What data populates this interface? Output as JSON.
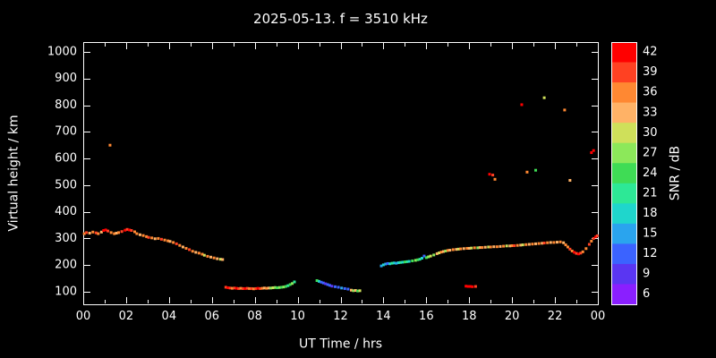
{
  "chart_data": {
    "type": "scatter",
    "title": "2025-05-13. f = 3510 kHz",
    "xlabel": "UT Time / hrs",
    "ylabel": "Virtual height / km",
    "colorbar_label": "SNR / dB",
    "background": "#000000",
    "axis_color": "#ffffff",
    "xlim": [
      0,
      24
    ],
    "ylim": [
      100,
      1000
    ],
    "x_tick_values": [
      0,
      2,
      4,
      6,
      8,
      10,
      12,
      14,
      16,
      18,
      20,
      22,
      24
    ],
    "x_tick_labels": [
      "00",
      "02",
      "04",
      "06",
      "08",
      "10",
      "12",
      "14",
      "16",
      "18",
      "20",
      "22",
      "00"
    ],
    "y_ticks": [
      100,
      200,
      300,
      400,
      500,
      600,
      700,
      800,
      900,
      1000
    ],
    "snr_levels": [
      42,
      39,
      36,
      33,
      30,
      27,
      24,
      21,
      18,
      15,
      12,
      9,
      6
    ],
    "snr_colors": [
      "#ff0000",
      "#ff4122",
      "#ff8832",
      "#ffb266",
      "#cfe05a",
      "#8ce85a",
      "#3fdc55",
      "#2de896",
      "#1fd6cc",
      "#2aa4ee",
      "#3b63ff",
      "#5a36f2",
      "#8a1fff"
    ],
    "points": [
      [
        0.05,
        318,
        36
      ],
      [
        0.15,
        322,
        39
      ],
      [
        0.3,
        320,
        33
      ],
      [
        0.45,
        324,
        36
      ],
      [
        0.6,
        321,
        39
      ],
      [
        0.7,
        318,
        36
      ],
      [
        0.85,
        324,
        33
      ],
      [
        0.95,
        330,
        42
      ],
      [
        1.05,
        332,
        42
      ],
      [
        1.15,
        328,
        39
      ],
      [
        1.25,
        650,
        36
      ],
      [
        1.3,
        322,
        36
      ],
      [
        1.45,
        318,
        36
      ],
      [
        1.55,
        320,
        33
      ],
      [
        1.65,
        322,
        36
      ],
      [
        1.8,
        326,
        39
      ],
      [
        1.95,
        331,
        42
      ],
      [
        2.05,
        334,
        39
      ],
      [
        2.15,
        332,
        42
      ],
      [
        2.25,
        330,
        39
      ],
      [
        2.4,
        325,
        36
      ],
      [
        2.5,
        318,
        36
      ],
      [
        2.65,
        314,
        33
      ],
      [
        2.8,
        311,
        36
      ],
      [
        2.95,
        307,
        36
      ],
      [
        3.05,
        304,
        39
      ],
      [
        3.2,
        302,
        36
      ],
      [
        3.35,
        299,
        33
      ],
      [
        3.5,
        300,
        36
      ],
      [
        3.65,
        297,
        39
      ],
      [
        3.8,
        294,
        36
      ],
      [
        3.95,
        291,
        36
      ],
      [
        4.05,
        289,
        33
      ],
      [
        4.2,
        285,
        36
      ],
      [
        4.35,
        280,
        39
      ],
      [
        4.5,
        274,
        36
      ],
      [
        4.65,
        268,
        33
      ],
      [
        4.8,
        263,
        36
      ],
      [
        4.95,
        258,
        39
      ],
      [
        5.1,
        252,
        36
      ],
      [
        5.25,
        248,
        33
      ],
      [
        5.4,
        245,
        36
      ],
      [
        5.55,
        241,
        36
      ],
      [
        5.65,
        237,
        30
      ],
      [
        5.8,
        233,
        36
      ],
      [
        5.95,
        230,
        33
      ],
      [
        6.1,
        227,
        36
      ],
      [
        6.25,
        224,
        33
      ],
      [
        6.4,
        222,
        30
      ],
      [
        6.5,
        221,
        33
      ],
      [
        6.65,
        117,
        39
      ],
      [
        6.75,
        115,
        42
      ],
      [
        6.85,
        114,
        39
      ],
      [
        6.95,
        113,
        36
      ],
      [
        7.05,
        114,
        39
      ],
      [
        7.15,
        113,
        42
      ],
      [
        7.25,
        112,
        39
      ],
      [
        7.35,
        113,
        36
      ],
      [
        7.45,
        112,
        39
      ],
      [
        7.55,
        112,
        42
      ],
      [
        7.65,
        113,
        39
      ],
      [
        7.75,
        112,
        36
      ],
      [
        7.85,
        112,
        39
      ],
      [
        7.95,
        111,
        36
      ],
      [
        8.05,
        112,
        39
      ],
      [
        8.15,
        113,
        42
      ],
      [
        8.25,
        112,
        39
      ],
      [
        8.35,
        113,
        36
      ],
      [
        8.45,
        114,
        33
      ],
      [
        8.55,
        113,
        36
      ],
      [
        8.65,
        114,
        33
      ],
      [
        8.75,
        114,
        27
      ],
      [
        8.85,
        115,
        30
      ],
      [
        8.95,
        116,
        27
      ],
      [
        9.05,
        115,
        24
      ],
      [
        9.15,
        116,
        27
      ],
      [
        9.25,
        117,
        24
      ],
      [
        9.35,
        118,
        27
      ],
      [
        9.45,
        120,
        24
      ],
      [
        9.55,
        123,
        21
      ],
      [
        9.65,
        127,
        24
      ],
      [
        9.75,
        131,
        27
      ],
      [
        9.85,
        137,
        21
      ],
      [
        10.9,
        142,
        24
      ],
      [
        11.0,
        139,
        18
      ],
      [
        11.1,
        136,
        12
      ],
      [
        11.2,
        133,
        12
      ],
      [
        11.3,
        130,
        9
      ],
      [
        11.4,
        127,
        12
      ],
      [
        11.5,
        124,
        12
      ],
      [
        11.6,
        121,
        9
      ],
      [
        11.75,
        119,
        12
      ],
      [
        11.9,
        117,
        12
      ],
      [
        12.05,
        114,
        15
      ],
      [
        12.2,
        112,
        12
      ],
      [
        12.35,
        110,
        12
      ],
      [
        12.5,
        106,
        33
      ],
      [
        12.6,
        104,
        27
      ],
      [
        12.7,
        105,
        33
      ],
      [
        12.8,
        103,
        24
      ],
      [
        12.9,
        104,
        30
      ],
      [
        13.9,
        197,
        15
      ],
      [
        14.0,
        201,
        18
      ],
      [
        14.1,
        204,
        15
      ],
      [
        14.2,
        206,
        12
      ],
      [
        14.3,
        205,
        18
      ],
      [
        14.4,
        207,
        21
      ],
      [
        14.5,
        208,
        18
      ],
      [
        14.6,
        207,
        15
      ],
      [
        14.7,
        209,
        18
      ],
      [
        14.8,
        210,
        21
      ],
      [
        14.9,
        211,
        18
      ],
      [
        15.0,
        212,
        24
      ],
      [
        15.1,
        213,
        21
      ],
      [
        15.2,
        214,
        18
      ],
      [
        15.35,
        216,
        24
      ],
      [
        15.5,
        218,
        27
      ],
      [
        15.6,
        220,
        24
      ],
      [
        15.7,
        222,
        21
      ],
      [
        15.8,
        226,
        18
      ],
      [
        15.9,
        234,
        12
      ],
      [
        16.0,
        228,
        24
      ],
      [
        16.1,
        231,
        27
      ],
      [
        16.2,
        234,
        30
      ],
      [
        16.35,
        238,
        27
      ],
      [
        16.5,
        243,
        33
      ],
      [
        16.6,
        246,
        30
      ],
      [
        16.7,
        249,
        36
      ],
      [
        16.8,
        251,
        33
      ],
      [
        16.9,
        253,
        27
      ],
      [
        17.0,
        255,
        36
      ],
      [
        17.1,
        256,
        33
      ],
      [
        17.25,
        258,
        36
      ],
      [
        17.4,
        259,
        33
      ],
      [
        17.5,
        260,
        30
      ],
      [
        17.6,
        261,
        36
      ],
      [
        17.75,
        262,
        33
      ],
      [
        17.9,
        263,
        36
      ],
      [
        18.0,
        263,
        33
      ],
      [
        18.1,
        264,
        30
      ],
      [
        18.25,
        265,
        36
      ],
      [
        18.4,
        265,
        27
      ],
      [
        18.5,
        266,
        33
      ],
      [
        18.6,
        266,
        36
      ],
      [
        18.75,
        267,
        33
      ],
      [
        18.9,
        268,
        30
      ],
      [
        19.0,
        268,
        36
      ],
      [
        19.15,
        269,
        33
      ],
      [
        19.3,
        269,
        36
      ],
      [
        19.45,
        270,
        33
      ],
      [
        19.6,
        271,
        36
      ],
      [
        19.75,
        272,
        30
      ],
      [
        19.9,
        272,
        33
      ],
      [
        20.0,
        273,
        36
      ],
      [
        20.1,
        273,
        39
      ],
      [
        20.25,
        274,
        36
      ],
      [
        20.4,
        275,
        33
      ],
      [
        20.5,
        276,
        30
      ],
      [
        20.65,
        277,
        36
      ],
      [
        20.8,
        278,
        33
      ],
      [
        20.95,
        279,
        36
      ],
      [
        21.1,
        280,
        33
      ],
      [
        21.25,
        281,
        36
      ],
      [
        21.4,
        282,
        33
      ],
      [
        21.5,
        283,
        39
      ],
      [
        21.65,
        284,
        36
      ],
      [
        21.8,
        285,
        33
      ],
      [
        21.95,
        285,
        36
      ],
      [
        22.1,
        286,
        33
      ],
      [
        22.25,
        287,
        36
      ],
      [
        22.4,
        284,
        33
      ],
      [
        22.5,
        276,
        36
      ],
      [
        22.6,
        268,
        36
      ],
      [
        22.7,
        260,
        39
      ],
      [
        22.8,
        253,
        36
      ],
      [
        22.9,
        248,
        42
      ],
      [
        23.0,
        244,
        39
      ],
      [
        23.1,
        242,
        42
      ],
      [
        23.2,
        245,
        39
      ],
      [
        23.3,
        250,
        36
      ],
      [
        23.45,
        262,
        36
      ],
      [
        23.6,
        278,
        39
      ],
      [
        23.7,
        290,
        36
      ],
      [
        23.8,
        300,
        39
      ],
      [
        23.9,
        306,
        42
      ],
      [
        23.97,
        310,
        39
      ],
      [
        17.85,
        121,
        42
      ],
      [
        17.95,
        120,
        42
      ],
      [
        18.05,
        120,
        42
      ],
      [
        18.15,
        119,
        42
      ],
      [
        18.3,
        120,
        39
      ],
      [
        18.95,
        541,
        42
      ],
      [
        19.1,
        538,
        39
      ],
      [
        19.2,
        522,
        36
      ],
      [
        20.45,
        802,
        42
      ],
      [
        20.7,
        549,
        36
      ],
      [
        21.1,
        556,
        24
      ],
      [
        21.5,
        828,
        30
      ],
      [
        22.45,
        782,
        36
      ],
      [
        22.7,
        518,
        33
      ],
      [
        23.7,
        622,
        42
      ],
      [
        23.8,
        630,
        42
      ]
    ]
  }
}
